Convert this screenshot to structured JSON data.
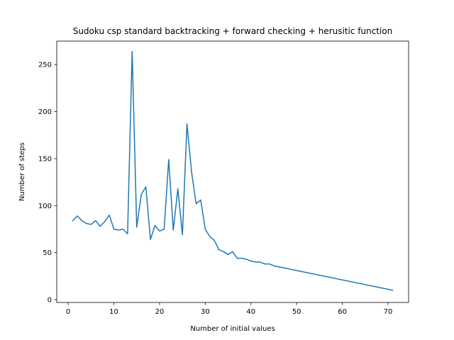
{
  "chart_data": {
    "type": "line",
    "title": "Sudoku csp standard backtracking + forward checking + herusitic function",
    "xlabel": "Number of initial values",
    "ylabel": "Number of steps",
    "xlim": [
      -2.5,
      74.5
    ],
    "ylim": [
      -3,
      275
    ],
    "xticks": [
      0,
      10,
      20,
      30,
      40,
      50,
      60,
      70
    ],
    "yticks": [
      0,
      50,
      100,
      150,
      200,
      250
    ],
    "grid": false,
    "series": [
      {
        "color": "#1f77b4",
        "x": [
          1,
          2,
          3,
          4,
          5,
          6,
          7,
          8,
          9,
          10,
          11,
          12,
          13,
          14,
          15,
          16,
          17,
          18,
          19,
          20,
          21,
          22,
          23,
          24,
          25,
          26,
          27,
          28,
          29,
          30,
          31,
          32,
          33,
          34,
          35,
          36,
          37,
          38,
          39,
          40,
          41,
          42,
          43,
          44,
          45,
          71
        ],
        "y": [
          84,
          89,
          84,
          81,
          80,
          84,
          78,
          83,
          90,
          75,
          74,
          75,
          70,
          264,
          77,
          112,
          120,
          64,
          79,
          73,
          75,
          149,
          74,
          118,
          69,
          187,
          136,
          102,
          106,
          75,
          67,
          63,
          53,
          51,
          48,
          51,
          44,
          44,
          43,
          41,
          40,
          40,
          38,
          38,
          36,
          10
        ]
      }
    ]
  }
}
